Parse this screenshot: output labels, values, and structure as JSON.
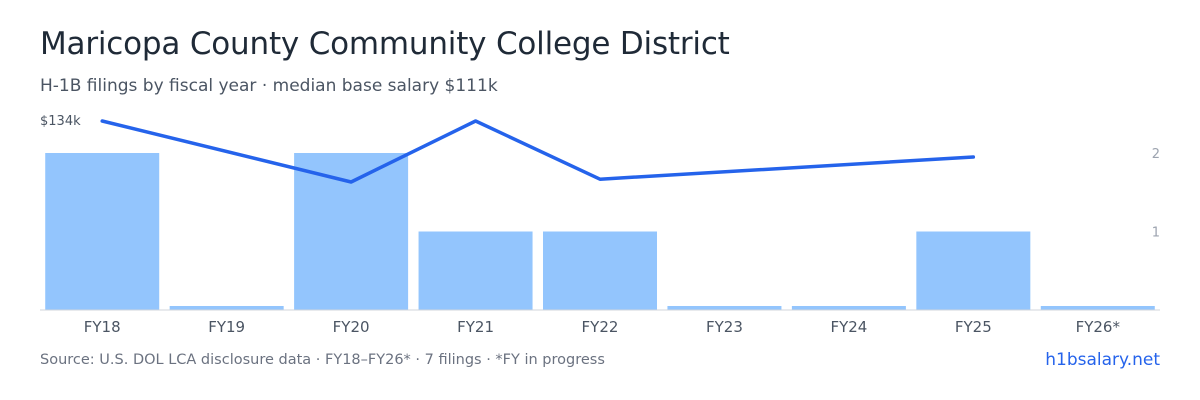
{
  "header": {
    "title": "Maricopa County Community College District",
    "subtitle": "H-1B filings by fiscal year · median base salary $111k"
  },
  "footer": {
    "source": "Source: U.S. DOL LCA disclosure data · FY18–FY26* · 7 filings · *FY in progress",
    "site": "h1bsalary.net"
  },
  "colors": {
    "bar": "#93c5fd",
    "line": "#2563eb",
    "axis_text": "#4b5563",
    "right_axis_text": "#9ca3af",
    "baseline": "#d1d5db"
  },
  "chart_data": {
    "type": "bar",
    "categories": [
      "FY18",
      "FY19",
      "FY20",
      "FY21",
      "FY22",
      "FY23",
      "FY24",
      "FY25",
      "FY26*"
    ],
    "series": [
      {
        "type": "bar",
        "axis": "right",
        "values": [
          2,
          0,
          2,
          1,
          1,
          0,
          0,
          1,
          0
        ]
      },
      {
        "type": "line",
        "axis": "left",
        "values": [
          134000,
          null,
          112000,
          134000,
          113000,
          null,
          null,
          121000,
          null
        ]
      }
    ],
    "left_axis": {
      "ticks": [
        "$134k"
      ],
      "tick_values": [
        134000
      ]
    },
    "right_axis": {
      "ticks": [
        "2",
        "1"
      ],
      "tick_values": [
        2,
        1
      ],
      "range": [
        0,
        2
      ]
    }
  }
}
